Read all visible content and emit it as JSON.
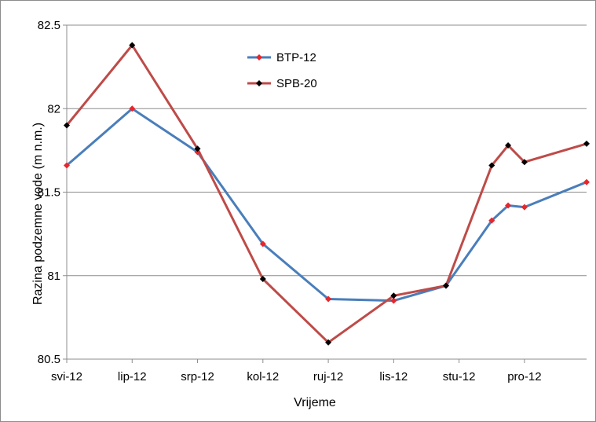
{
  "chart_data": {
    "type": "line",
    "xlabel": "Vrijeme",
    "ylabel": "Razina podzemne vode (m n.m.)",
    "x_tick_labels": [
      "svi-12",
      "lip-12",
      "srp-12",
      "kol-12",
      "ruj-12",
      "lis-12",
      "stu-12",
      "pro-12"
    ],
    "y_tick_labels": [
      "80.5",
      "81",
      "81.5",
      "82",
      "82.5"
    ],
    "y_ticks": [
      80.5,
      81,
      81.5,
      82,
      82.5
    ],
    "ylim": [
      80.5,
      82.5
    ],
    "xlim": [
      0,
      7.95
    ],
    "grid": "horizontal",
    "legend_position": "top-center",
    "series": [
      {
        "name": "BTP-12",
        "color": "#4a7ebb",
        "marker_color": "#e8262b",
        "x": [
          0,
          1,
          2,
          3,
          4,
          5,
          5.8,
          6.5,
          6.75,
          7,
          7.95
        ],
        "y": [
          81.66,
          82.0,
          81.74,
          81.19,
          80.86,
          80.85,
          80.94,
          81.33,
          81.42,
          81.41,
          81.56
        ]
      },
      {
        "name": "SPB-20",
        "color": "#be4b48",
        "marker_color": "#000000",
        "x": [
          0,
          1,
          2,
          3,
          4,
          5,
          5.8,
          6.5,
          6.75,
          7,
          7.95
        ],
        "y": [
          81.9,
          82.38,
          81.76,
          80.98,
          80.6,
          80.88,
          80.94,
          81.66,
          81.78,
          81.68,
          81.79
        ]
      }
    ]
  }
}
